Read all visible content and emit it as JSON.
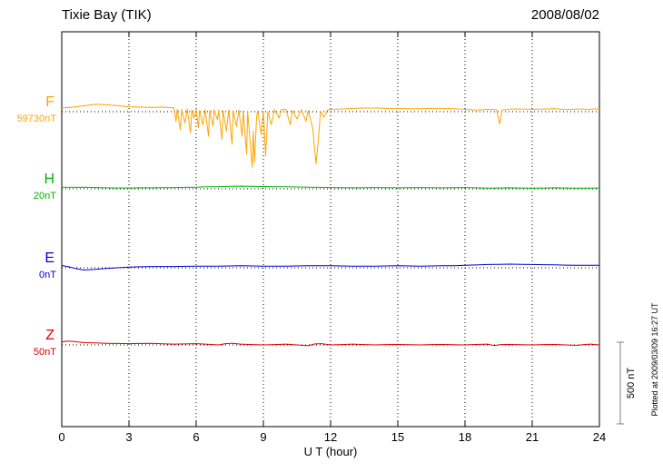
{
  "header": {
    "title": "Tixie Bay (TIK)",
    "date": "2008/08/02"
  },
  "x_axis": {
    "label": "U T (hour)"
  },
  "scale_bar": {
    "label": "500 nT",
    "span_nT": 500
  },
  "footnote": "Plotted at 2009/03/09 16:27 UT",
  "chart_data": {
    "type": "line",
    "title": "Tixie Bay (TIK)",
    "subtitle": "2008/08/02",
    "xlabel": "U T (hour)",
    "x_range": [
      0,
      24
    ],
    "x_ticks": [
      0,
      3,
      6,
      9,
      12,
      15,
      18,
      21,
      24
    ],
    "grid": "dotted-vertical-at-ticks, dotted-horizontal-baselines",
    "scale_bar_nT": 500,
    "series": [
      {
        "name": "F",
        "baseline_label": "59730nT",
        "baseline_value_nT": 59730,
        "color": "#FFA500",
        "units": "nT offset from baseline",
        "points": [
          [
            0,
            22
          ],
          [
            0.5,
            28
          ],
          [
            1,
            36
          ],
          [
            1.5,
            45
          ],
          [
            2,
            42
          ],
          [
            2.5,
            36
          ],
          [
            3,
            30
          ],
          [
            3.5,
            28
          ],
          [
            4,
            26
          ],
          [
            4.5,
            28
          ],
          [
            5,
            24
          ],
          [
            5.1,
            -60
          ],
          [
            5.15,
            15
          ],
          [
            5.3,
            -110
          ],
          [
            5.35,
            12
          ],
          [
            5.5,
            -70
          ],
          [
            5.6,
            18
          ],
          [
            5.75,
            -130
          ],
          [
            5.8,
            10
          ],
          [
            5.9,
            -40
          ],
          [
            6,
            15
          ],
          [
            6.1,
            -100
          ],
          [
            6.15,
            8
          ],
          [
            6.3,
            -80
          ],
          [
            6.4,
            12
          ],
          [
            6.55,
            -150
          ],
          [
            6.6,
            8
          ],
          [
            6.75,
            -90
          ],
          [
            6.8,
            12
          ],
          [
            6.95,
            -50
          ],
          [
            7,
            10
          ],
          [
            7.15,
            -170
          ],
          [
            7.2,
            8
          ],
          [
            7.35,
            -120
          ],
          [
            7.45,
            10
          ],
          [
            7.6,
            -200
          ],
          [
            7.65,
            5
          ],
          [
            7.8,
            -90
          ],
          [
            7.9,
            10
          ],
          [
            8.05,
            -150
          ],
          [
            8.1,
            5
          ],
          [
            8.25,
            -260
          ],
          [
            8.3,
            0
          ],
          [
            8.5,
            -340
          ],
          [
            8.55,
            -120
          ],
          [
            8.6,
            -310
          ],
          [
            8.7,
            -30
          ],
          [
            8.75,
            5
          ],
          [
            8.9,
            -140
          ],
          [
            9,
            5
          ],
          [
            9.1,
            -270
          ],
          [
            9.2,
            0
          ],
          [
            9.35,
            -80
          ],
          [
            9.5,
            12
          ],
          [
            9.7,
            -40
          ],
          [
            9.8,
            12
          ],
          [
            10,
            14
          ],
          [
            10.2,
            -80
          ],
          [
            10.3,
            8
          ],
          [
            10.5,
            -45
          ],
          [
            10.7,
            12
          ],
          [
            10.9,
            -60
          ],
          [
            11,
            8
          ],
          [
            11.2,
            -100
          ],
          [
            11.35,
            -320
          ],
          [
            11.45,
            -180
          ],
          [
            11.55,
            0
          ],
          [
            11.7,
            -35
          ],
          [
            11.85,
            8
          ],
          [
            12,
            14
          ],
          [
            12.5,
            16
          ],
          [
            13,
            20
          ],
          [
            13.5,
            22
          ],
          [
            14,
            22
          ],
          [
            14.5,
            20
          ],
          [
            15,
            20
          ],
          [
            15.5,
            18
          ],
          [
            16,
            18
          ],
          [
            16.5,
            20
          ],
          [
            17,
            20
          ],
          [
            17.5,
            18
          ],
          [
            18,
            14
          ],
          [
            18.5,
            10
          ],
          [
            19,
            14
          ],
          [
            19.4,
            12
          ],
          [
            19.55,
            -75
          ],
          [
            19.65,
            10
          ],
          [
            20,
            16
          ],
          [
            20.5,
            16
          ],
          [
            21,
            14
          ],
          [
            21.5,
            16
          ],
          [
            22,
            18
          ],
          [
            22.5,
            12
          ],
          [
            23,
            16
          ],
          [
            23.5,
            14
          ],
          [
            24,
            18
          ]
        ]
      },
      {
        "name": "H",
        "baseline_label": "20nT",
        "baseline_value_nT": 20,
        "color": "#00B400",
        "units": "nT offset from baseline",
        "points": [
          [
            0,
            10
          ],
          [
            0.5,
            9
          ],
          [
            1,
            10
          ],
          [
            1.5,
            8
          ],
          [
            2,
            6
          ],
          [
            2.5,
            5
          ],
          [
            3,
            5
          ],
          [
            3.5,
            6
          ],
          [
            4,
            6
          ],
          [
            4.5,
            7
          ],
          [
            5,
            8
          ],
          [
            5.5,
            9
          ],
          [
            6,
            10
          ],
          [
            6.5,
            12
          ],
          [
            7,
            13
          ],
          [
            7.5,
            15
          ],
          [
            8,
            16
          ],
          [
            8.5,
            15
          ],
          [
            9,
            14
          ],
          [
            9.5,
            13
          ],
          [
            10,
            12
          ],
          [
            10.5,
            11
          ],
          [
            11,
            10
          ],
          [
            11.5,
            9
          ],
          [
            12,
            8
          ],
          [
            12.5,
            7
          ],
          [
            13,
            6
          ],
          [
            13.5,
            7
          ],
          [
            14,
            8
          ],
          [
            14.5,
            7
          ],
          [
            15,
            6
          ],
          [
            15.5,
            7
          ],
          [
            16,
            8
          ],
          [
            16.5,
            7
          ],
          [
            17,
            6
          ],
          [
            17.5,
            7
          ],
          [
            18,
            8
          ],
          [
            18.5,
            6
          ],
          [
            19,
            4
          ],
          [
            19.5,
            5
          ],
          [
            20,
            6
          ],
          [
            20.5,
            5
          ],
          [
            21,
            4
          ],
          [
            21.5,
            5
          ],
          [
            22,
            6
          ],
          [
            22.5,
            5
          ],
          [
            23,
            4
          ],
          [
            23.5,
            4
          ],
          [
            24,
            5
          ]
        ]
      },
      {
        "name": "E",
        "baseline_label": "0nT",
        "baseline_value_nT": 0,
        "color": "#0000D0",
        "units": "nT offset from baseline",
        "points": [
          [
            0,
            14
          ],
          [
            0.3,
            6
          ],
          [
            0.6,
            -4
          ],
          [
            1,
            -14
          ],
          [
            1.5,
            -10
          ],
          [
            2,
            -4
          ],
          [
            2.5,
            0
          ],
          [
            3,
            4
          ],
          [
            3.5,
            6
          ],
          [
            4,
            8
          ],
          [
            4.5,
            8
          ],
          [
            5,
            8
          ],
          [
            5.5,
            9
          ],
          [
            6,
            10
          ],
          [
            6.5,
            10
          ],
          [
            7,
            10
          ],
          [
            7.5,
            11
          ],
          [
            8,
            12
          ],
          [
            8.5,
            11
          ],
          [
            9,
            10
          ],
          [
            9.5,
            10
          ],
          [
            10,
            10
          ],
          [
            10.5,
            11
          ],
          [
            11,
            12
          ],
          [
            11.5,
            12
          ],
          [
            12,
            12
          ],
          [
            12.5,
            11
          ],
          [
            13,
            10
          ],
          [
            13.5,
            10
          ],
          [
            14,
            10
          ],
          [
            14.5,
            11
          ],
          [
            15,
            12
          ],
          [
            15.5,
            11
          ],
          [
            16,
            10
          ],
          [
            16.5,
            11
          ],
          [
            17,
            12
          ],
          [
            17.5,
            13
          ],
          [
            18,
            15
          ],
          [
            18.5,
            17
          ],
          [
            19,
            20
          ],
          [
            19.5,
            21
          ],
          [
            20,
            22
          ],
          [
            20.5,
            21
          ],
          [
            21,
            20
          ],
          [
            21.5,
            19
          ],
          [
            22,
            18
          ],
          [
            22.5,
            16
          ],
          [
            23,
            15
          ],
          [
            23.5,
            15
          ],
          [
            24,
            15
          ]
        ]
      },
      {
        "name": "Z",
        "baseline_label": "50nT",
        "baseline_value_nT": 50,
        "color": "#E00000",
        "units": "nT offset from baseline",
        "points": [
          [
            0,
            18
          ],
          [
            0.3,
            24
          ],
          [
            0.6,
            20
          ],
          [
            1,
            14
          ],
          [
            1.5,
            12
          ],
          [
            2,
            10
          ],
          [
            2.5,
            9
          ],
          [
            3,
            8
          ],
          [
            3.5,
            9
          ],
          [
            4,
            10
          ],
          [
            4.5,
            7
          ],
          [
            5,
            5
          ],
          [
            5.5,
            6
          ],
          [
            6,
            8
          ],
          [
            6.5,
            4
          ],
          [
            7,
            0
          ],
          [
            7.3,
            8
          ],
          [
            7.6,
            10
          ],
          [
            8,
            5
          ],
          [
            8.5,
            2
          ],
          [
            9,
            0
          ],
          [
            9.5,
            2
          ],
          [
            10,
            5
          ],
          [
            10.5,
            0
          ],
          [
            11,
            -5
          ],
          [
            11.3,
            6
          ],
          [
            11.6,
            8
          ],
          [
            12,
            0
          ],
          [
            12.5,
            2
          ],
          [
            13,
            5
          ],
          [
            13.5,
            2
          ],
          [
            14,
            0
          ],
          [
            14.5,
            2
          ],
          [
            15,
            3
          ],
          [
            15.5,
            1
          ],
          [
            16,
            0
          ],
          [
            16.5,
            2
          ],
          [
            17,
            3
          ],
          [
            17.5,
            1
          ],
          [
            18,
            0
          ],
          [
            18.5,
            3
          ],
          [
            19,
            5
          ],
          [
            19.3,
            -4
          ],
          [
            19.6,
            2
          ],
          [
            20,
            3
          ],
          [
            20.5,
            1
          ],
          [
            21,
            0
          ],
          [
            21.5,
            2
          ],
          [
            22,
            3
          ],
          [
            22.5,
            0
          ],
          [
            23,
            -3
          ],
          [
            23.3,
            2
          ],
          [
            23.6,
            5
          ],
          [
            24,
            0
          ]
        ]
      }
    ]
  }
}
